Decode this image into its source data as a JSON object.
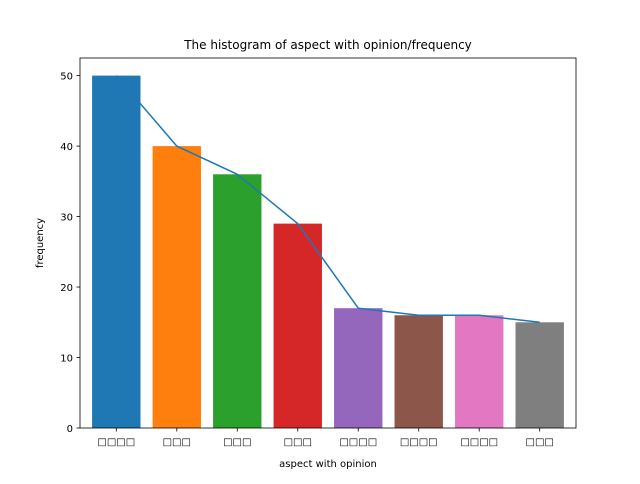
{
  "chart_data": {
    "type": "bar",
    "title": "The histogram of aspect with opinion/frequency",
    "xlabel": "aspect with opinion",
    "ylabel": "frequency",
    "categories": [
      "□□□□",
      "□□□",
      "□□□",
      "□□□",
      "□□□□",
      "□□□□",
      "□□□□",
      "□□□"
    ],
    "values": [
      50,
      40,
      36,
      29,
      17,
      16,
      16,
      15
    ],
    "bar_colors": [
      "#1f77b4",
      "#ff7f0e",
      "#2ca02c",
      "#d62728",
      "#9467bd",
      "#8c564b",
      "#e377c2",
      "#7f7f7f"
    ],
    "line": {
      "values": [
        50,
        40,
        36,
        29,
        17,
        16,
        16,
        15
      ],
      "color": "#1f77b4"
    },
    "yticks": [
      0,
      10,
      20,
      30,
      40,
      50
    ],
    "ylim": [
      0,
      52.5
    ],
    "grid": false,
    "legend": "none"
  }
}
